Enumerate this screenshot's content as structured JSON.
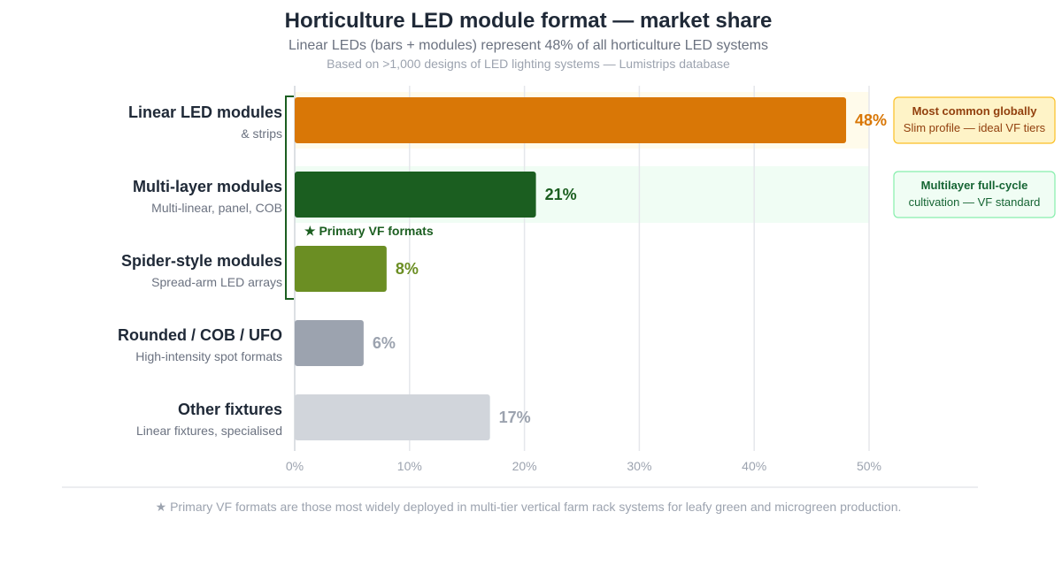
{
  "chart_data": {
    "type": "bar",
    "orientation": "horizontal",
    "title": "Horticulture LED module format — market share",
    "subtitle": "Linear LEDs (bars + modules) represent 48% of all horticulture LED systems",
    "source": "Based on >1,000 designs of LED lighting systems — Lumistrips database",
    "categories": [
      {
        "label": "Linear LED modules",
        "sublabel": "& strips",
        "value": 48,
        "value_label": "48%",
        "color": "#d97706",
        "label_color": "#d97706"
      },
      {
        "label": "Multi-layer modules",
        "sublabel": "Multi-linear, panel, COB",
        "value": 21,
        "value_label": "21%",
        "color": "#1b5e20",
        "label_color": "#1b5e20"
      },
      {
        "label": "Spider-style modules",
        "sublabel": "Spread-arm LED arrays",
        "value": 8,
        "value_label": "8%",
        "color": "#6b8e23",
        "label_color": "#6b8e23"
      },
      {
        "label": "Rounded / COB / UFO",
        "sublabel": "High-intensity spot formats",
        "value": 6,
        "value_label": "6%",
        "color": "#9ca3af",
        "label_color": "#9ca3af"
      },
      {
        "label": "Other fixtures",
        "sublabel": "Linear fixtures, specialised",
        "value": 17,
        "value_label": "17%",
        "color": "#d1d5db",
        "label_color": "#9ca3af"
      }
    ],
    "xlim": [
      0,
      50
    ],
    "xticks": [
      "0%",
      "10%",
      "20%",
      "30%",
      "40%",
      "50%"
    ],
    "xtick_values": [
      0,
      10,
      20,
      30,
      40,
      50
    ],
    "grid": true,
    "highlight_rows": [
      {
        "row": 0,
        "color": "#fffbeb"
      },
      {
        "row": 1,
        "color": "#f0fdf4"
      }
    ],
    "bracket": {
      "label": "★ Primary VF formats",
      "rows": [
        0,
        1
      ],
      "color": "#1b5e20"
    },
    "callouts": [
      {
        "row": 0,
        "title": "Most common globally",
        "body": "Slim profile — ideal VF tiers",
        "bg": "#fef3c7",
        "border": "#fbbf24",
        "title_color": "#92400e",
        "body_color": "#92400e"
      },
      {
        "row": 1,
        "title": "Multilayer full-cycle",
        "body": "cultivation — VF standard",
        "bg": "#f0fdf4",
        "border": "#86efac",
        "title_color": "#166534",
        "body_color": "#166534"
      }
    ],
    "footnote": "★ Primary VF formats are those most widely deployed in multi-tier vertical farm rack systems for leafy green and microgreen production."
  }
}
